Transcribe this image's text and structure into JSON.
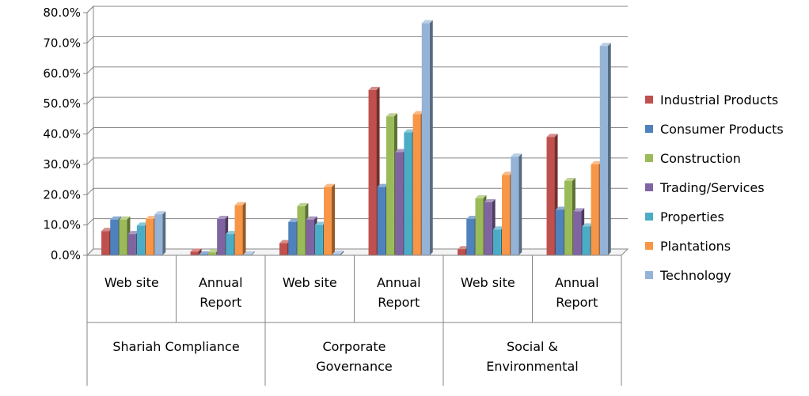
{
  "chart_data": {
    "type": "bar",
    "title": "",
    "xlabel": "",
    "ylabel": "",
    "ylim": [
      0,
      80
    ],
    "y_ticks": [
      "0.0%",
      "10.0%",
      "20.0%",
      "30.0%",
      "40.0%",
      "50.0%",
      "60.0%",
      "70.0%",
      "80.0%"
    ],
    "grid": true,
    "legend_position": "right",
    "groups": [
      {
        "label": "Shariah Compliance",
        "categories": [
          "Web site",
          "Annual Report"
        ]
      },
      {
        "label": "Corporate Governance",
        "categories": [
          "Web site",
          "Annual Report"
        ]
      },
      {
        "label": "Social & Environmental",
        "categories": [
          "Web site",
          "Annual Report"
        ]
      }
    ],
    "categories": [
      "Web site",
      "Annual Report",
      "Web site",
      "Annual Report",
      "Web site",
      "Annual Report"
    ],
    "series": [
      {
        "name": "Industrial Products",
        "color": "#c0504d",
        "values": [
          8.0,
          1.2,
          4.0,
          54.5,
          2.0,
          39.0
        ]
      },
      {
        "name": "Consumer Products",
        "color": "#4f81bd",
        "values": [
          11.8,
          0.3,
          11.0,
          22.5,
          12.0,
          15.0
        ]
      },
      {
        "name": "Construction",
        "color": "#9bbb59",
        "values": [
          11.8,
          1.0,
          16.2,
          45.8,
          18.8,
          24.5
        ]
      },
      {
        "name": "Trading/Services",
        "color": "#8064a2",
        "values": [
          7.0,
          12.0,
          11.8,
          34.0,
          17.5,
          14.5
        ]
      },
      {
        "name": "Properties",
        "color": "#4bacc6",
        "values": [
          9.8,
          7.0,
          10.0,
          40.5,
          8.5,
          9.5
        ]
      },
      {
        "name": "Plantations",
        "color": "#f79646",
        "values": [
          12.0,
          16.5,
          22.5,
          46.5,
          26.5,
          30.0
        ]
      },
      {
        "name": "Technology",
        "color": "#95b3d7",
        "values": [
          13.5,
          0.3,
          0.5,
          76.5,
          32.5,
          69.0
        ]
      }
    ]
  }
}
